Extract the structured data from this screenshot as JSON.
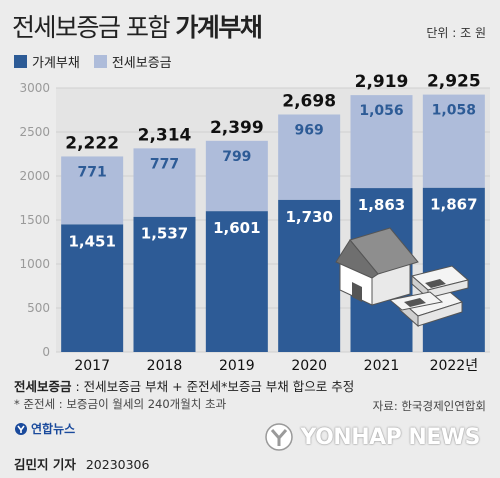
{
  "header": {
    "title_light": "전세보증금 포함",
    "title_bold": "가계부채",
    "unit": "단위 : 조 원"
  },
  "legend": [
    {
      "label": "가계부채",
      "color": "#2d5b96"
    },
    {
      "label": "전세보증금",
      "color": "#aebcda"
    }
  ],
  "chart_data": {
    "type": "bar",
    "stacked": true,
    "categories": [
      "2017",
      "2018",
      "2019",
      "2020",
      "2021",
      "2022년"
    ],
    "series": [
      {
        "name": "가계부채",
        "values": [
          1451,
          1537,
          1601,
          1730,
          1863,
          1867
        ],
        "labels": [
          "1,451",
          "1,537",
          "1,601",
          "1,730",
          "1,863",
          "1,867"
        ],
        "color": "#2d5b96"
      },
      {
        "name": "전세보증금",
        "values": [
          771,
          777,
          799,
          969,
          1056,
          1058
        ],
        "labels": [
          "771",
          "777",
          "799",
          "969",
          "1,056",
          "1,058"
        ],
        "color": "#aebcda"
      }
    ],
    "totals": [
      2222,
      2314,
      2399,
      2698,
      2919,
      2925
    ],
    "total_labels": [
      "2,222",
      "2,314",
      "2,399",
      "2,698",
      "2,919",
      "2,925"
    ],
    "yticks": [
      "0",
      "500",
      "1000",
      "1500",
      "2000",
      "2500",
      "3000"
    ],
    "ylim": [
      0,
      3000
    ],
    "grid": true
  },
  "notes": {
    "definition_label": "전세보증금",
    "definition_text": " : 전세보증금 부채 + 준전세*보증금 부채 합으로 추정",
    "footnote": "* 준전세 : 보증금이 월세의 240개월치 초과",
    "source": "자료: 한국경제인연합회"
  },
  "branding": {
    "logo": "연합뉴스",
    "watermark": "YONHAP NEWS"
  },
  "byline": {
    "name": "김민지 기자",
    "date": "20230306"
  }
}
